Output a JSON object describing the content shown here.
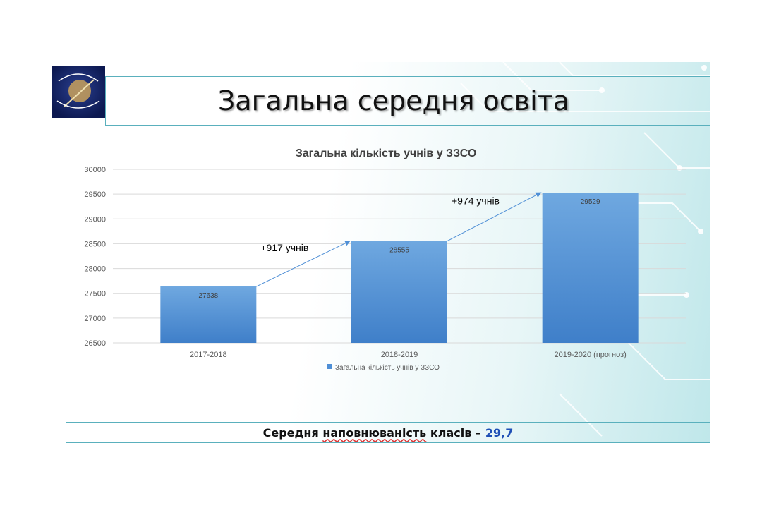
{
  "slide": {
    "title": "Загальна середня освіта",
    "footer_prefix": "Середня",
    "footer_underlined": "наповнюваність",
    "footer_suffix": "класів –",
    "footer_value": "29,7"
  },
  "colors": {
    "bar": "#4f8fd6",
    "border": "#5ab0bd",
    "value_highlight": "#1f4fb6"
  },
  "chart_data": {
    "type": "bar",
    "title": "Загальна кількість учнів у ЗЗСО",
    "categories": [
      "2017-2018",
      "2018-2019",
      "2019-2020  (прогноз)"
    ],
    "series": [
      {
        "name": "Загальна кількість учнів у ЗЗСО",
        "values": [
          27638,
          28555,
          29529
        ]
      }
    ],
    "ylim": [
      26500,
      30000
    ],
    "yticks": [
      26500,
      27000,
      27500,
      28000,
      28500,
      29000,
      29500,
      30000
    ],
    "grid": true,
    "legend": "bottom",
    "annotations": [
      "+917 учнів",
      "+974 учнів"
    ]
  }
}
